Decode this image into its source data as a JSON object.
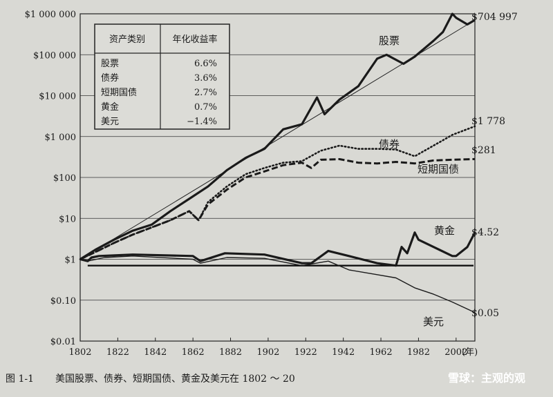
{
  "chart_data": {
    "type": "line",
    "y_scale": "log",
    "ylim": [
      0.01,
      1000000
    ],
    "xlim": [
      1802,
      2012
    ],
    "y_ticks": [
      0.01,
      0.1,
      1,
      10,
      100,
      1000,
      10000,
      100000,
      1000000
    ],
    "y_tick_labels": [
      "$0.01",
      "$0.10",
      "$1",
      "$10",
      "$100",
      "$1 000",
      "$10 000",
      "$100 000",
      "$1 000 000"
    ],
    "x_ticks": [
      1802,
      1822,
      1842,
      1862,
      1882,
      1902,
      1922,
      1942,
      1962,
      1982,
      2002
    ],
    "x_unit_label": "(年)",
    "grid": "horizontal",
    "series": [
      {
        "name": "股票",
        "end_label": "$704 997",
        "style": "solid-thick",
        "x": [
          1802,
          1810,
          1820,
          1830,
          1840,
          1850,
          1860,
          1870,
          1880,
          1890,
          1900,
          1910,
          1920,
          1928,
          1932,
          1940,
          1950,
          1960,
          1965,
          1974,
          1980,
          1990,
          1995,
          2000,
          2002,
          2008,
          2012
        ],
        "values": [
          1,
          1.7,
          3,
          5,
          7,
          15,
          30,
          60,
          150,
          300,
          500,
          1500,
          2000,
          9000,
          3500,
          8000,
          17000,
          80000,
          100000,
          60000,
          90000,
          220000,
          360000,
          1000000,
          800000,
          550000,
          704997
        ]
      },
      {
        "name": "债券",
        "end_label": "$1 778",
        "style": "dotted",
        "x": [
          1802,
          1810,
          1820,
          1830,
          1840,
          1850,
          1860,
          1865,
          1870,
          1880,
          1890,
          1900,
          1910,
          1920,
          1930,
          1940,
          1950,
          1960,
          1970,
          1980,
          1990,
          2000,
          2012
        ],
        "values": [
          1,
          1.5,
          2.5,
          4,
          6,
          9,
          15,
          9,
          25,
          60,
          120,
          170,
          230,
          250,
          450,
          600,
          500,
          500,
          480,
          330,
          600,
          1100,
          1778
        ]
      },
      {
        "name": "短期国债",
        "end_label": "$281",
        "style": "dashed",
        "x": [
          1802,
          1810,
          1820,
          1830,
          1840,
          1850,
          1860,
          1865,
          1870,
          1880,
          1890,
          1900,
          1910,
          1920,
          1925,
          1930,
          1940,
          1950,
          1960,
          1970,
          1980,
          1990,
          2000,
          2012
        ],
        "values": [
          1,
          1.5,
          2.5,
          4,
          6,
          9,
          15,
          9,
          22,
          50,
          100,
          140,
          200,
          230,
          170,
          270,
          280,
          230,
          220,
          240,
          220,
          260,
          270,
          281
        ]
      },
      {
        "name": "黄金",
        "end_label": "$4.52",
        "style": "solid-thick",
        "x": [
          1802,
          1806,
          1808,
          1812,
          1830,
          1862,
          1866,
          1879,
          1900,
          1920,
          1925,
          1934,
          1945,
          1960,
          1970,
          1973,
          1976,
          1980,
          1982,
          1990,
          2000,
          2002,
          2008,
          2012
        ],
        "values": [
          1,
          0.9,
          1.1,
          1.2,
          1.3,
          1.2,
          0.9,
          1.4,
          1.3,
          0.8,
          0.8,
          1.6,
          1.2,
          0.8,
          0.7,
          2,
          1.4,
          4.5,
          3,
          2,
          1.2,
          1.2,
          2,
          4.52
        ]
      },
      {
        "name": "美元",
        "end_label": "$0.05",
        "style": "solid-thin",
        "x": [
          1802,
          1806,
          1815,
          1830,
          1862,
          1866,
          1880,
          1900,
          1920,
          1934,
          1945,
          1960,
          1970,
          1980,
          1990,
          2000,
          2012
        ],
        "values": [
          1,
          0.9,
          1.1,
          1.2,
          1.0,
          0.8,
          1.1,
          1.05,
          0.7,
          0.9,
          0.55,
          0.42,
          0.35,
          0.2,
          0.14,
          0.09,
          0.05
        ]
      }
    ],
    "reference_line": {
      "value": 0.7
    },
    "inset_table": {
      "headers": [
        "资产类别",
        "年化收益率"
      ],
      "rows": [
        [
          "股票",
          "6.6%"
        ],
        [
          "债券",
          "3.6%"
        ],
        [
          "短期国债",
          "2.7%"
        ],
        [
          "黄金",
          "0.7%"
        ],
        [
          "美元",
          "−1.4%"
        ]
      ]
    }
  },
  "caption": {
    "figure_number": "图 1-1",
    "text": "美国股票、债券、短期国债、黄金及美元在 1802 ～ 20",
    "watermark": "雪球：主观的观"
  }
}
